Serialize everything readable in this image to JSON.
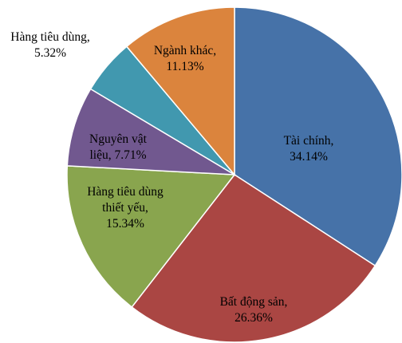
{
  "chart_data": {
    "type": "pie",
    "title": "",
    "slices": [
      {
        "name": "Tài chính",
        "value": 34.14,
        "color": "#4672A8",
        "label_lines": [
          "Tài chính,",
          "34.14%"
        ]
      },
      {
        "name": "Bất động sản",
        "value": 26.36,
        "color": "#AA4643",
        "label_lines": [
          "Bất động sản,",
          "26.36%"
        ]
      },
      {
        "name": "Hàng tiêu dùng thiết yếu",
        "value": 15.34,
        "color": "#89A54E",
        "label_lines": [
          "Hàng tiêu dùng",
          "thiết yếu,",
          "15.34%"
        ]
      },
      {
        "name": "Nguyên vật liệu",
        "value": 7.71,
        "color": "#71588F",
        "label_lines": [
          "Nguyên vật",
          "liệu, 7.71%"
        ]
      },
      {
        "name": "Hàng tiêu dùng",
        "value": 5.32,
        "color": "#4198AF",
        "label_lines": [
          "Hàng tiêu dùng,",
          "5.32%"
        ]
      },
      {
        "name": "Ngành khác",
        "value": 11.13,
        "color": "#DB843D",
        "label_lines": [
          "Ngành khác,",
          "11.13%"
        ]
      }
    ]
  }
}
